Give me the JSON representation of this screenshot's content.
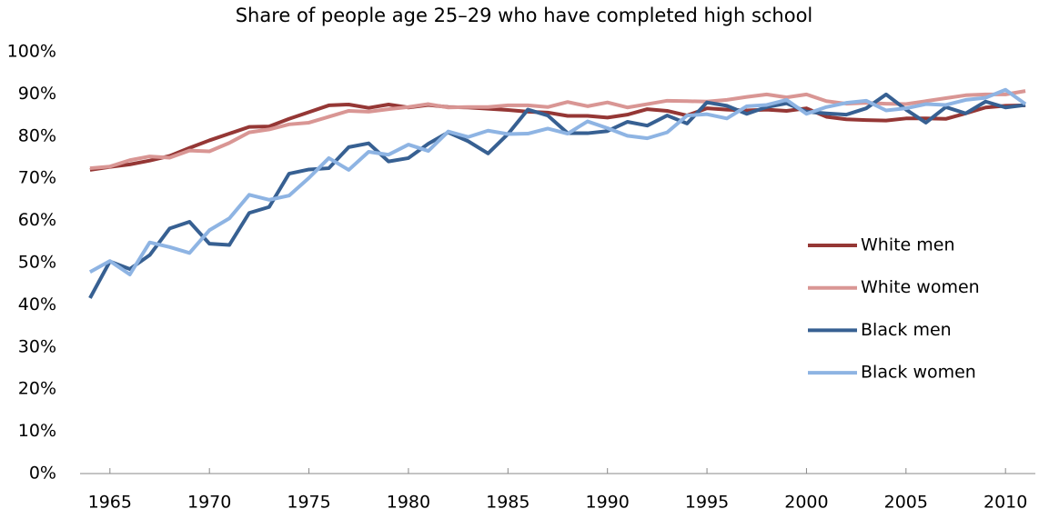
{
  "chart_data": {
    "type": "line",
    "title": "Share of people age 25–29 who have completed high school",
    "x": [
      1964,
      1965,
      1966,
      1967,
      1968,
      1969,
      1970,
      1971,
      1972,
      1973,
      1974,
      1975,
      1976,
      1977,
      1978,
      1979,
      1980,
      1981,
      1982,
      1983,
      1984,
      1985,
      1986,
      1987,
      1988,
      1989,
      1990,
      1991,
      1992,
      1993,
      1994,
      1995,
      1996,
      1997,
      1998,
      1999,
      2000,
      2001,
      2002,
      2003,
      2004,
      2005,
      2006,
      2007,
      2008,
      2009,
      2010,
      2011
    ],
    "series": [
      {
        "name": "White men",
        "color": "#953735",
        "values": [
          72,
          72.7,
          73.3,
          74.2,
          75.3,
          77.2,
          79,
          80.6,
          82.2,
          82.3,
          84.1,
          85.7,
          87.3,
          87.5,
          86.7,
          87.5,
          86.8,
          87.4,
          86.9,
          86.8,
          86.5,
          86.2,
          85.8,
          85.6,
          84.8,
          84.8,
          84.4,
          85.1,
          86.4,
          86,
          84.9,
          86.6,
          86.3,
          86.1,
          86.3,
          86,
          86.6,
          84.6,
          84,
          83.8,
          83.7,
          84.2,
          84.2,
          84.1,
          85.4,
          86.8,
          87.2,
          87.3
        ]
      },
      {
        "name": "White women",
        "color": "#d99694",
        "values": [
          72.4,
          72.8,
          74.3,
          75.2,
          74.9,
          76.6,
          76.4,
          78.4,
          80.9,
          81.6,
          82.8,
          83.2,
          84.6,
          86,
          85.8,
          86.4,
          86.9,
          87.6,
          86.8,
          86.9,
          86.9,
          87.3,
          87.3,
          86.9,
          88.1,
          87.1,
          88,
          86.8,
          87.6,
          88.4,
          88.3,
          88.2,
          88.6,
          89.3,
          89.9,
          89.2,
          89.9,
          88.3,
          87.7,
          87.9,
          87.7,
          87.6,
          88.3,
          89,
          89.7,
          89.9,
          89.9,
          90.7
        ]
      },
      {
        "name": "Black men",
        "color": "#376092",
        "values": [
          41.6,
          50.3,
          48.5,
          51.8,
          58.1,
          59.7,
          54.5,
          54.2,
          61.8,
          63.2,
          71.1,
          72.1,
          72.4,
          77.4,
          78.3,
          74,
          74.8,
          78.2,
          80.9,
          78.8,
          75.9,
          80.5,
          86.3,
          84.9,
          80.7,
          80.7,
          81.2,
          83.4,
          82.5,
          84.9,
          83,
          88,
          87.2,
          85.3,
          86.9,
          87.8,
          85.8,
          85.4,
          85.1,
          86.6,
          89.9,
          86.3,
          83.2,
          86.9,
          85.4,
          88.2,
          86.8,
          87.4
        ]
      },
      {
        "name": "Black women",
        "color": "#8eb4e3",
        "values": [
          47.8,
          50.4,
          47.2,
          54.8,
          53.7,
          52.3,
          57.7,
          60.5,
          66.1,
          64.9,
          65.9,
          70.1,
          74.8,
          72,
          76.3,
          75.6,
          78,
          76.5,
          81.1,
          79.8,
          81.3,
          80.5,
          80.6,
          81.8,
          80.6,
          83.5,
          81.9,
          80.1,
          79.5,
          80.9,
          84.9,
          85.2,
          84.2,
          87.1,
          87.4,
          88.6,
          85.3,
          86.9,
          87.9,
          88.4,
          86.1,
          86.6,
          87.6,
          87.4,
          88.6,
          89.1,
          91,
          87.6
        ]
      }
    ],
    "xlim": [
      1963.5,
      2011.5
    ],
    "xticks": [
      1965,
      1970,
      1975,
      1980,
      1985,
      1990,
      1995,
      2000,
      2005,
      2010
    ],
    "ylim": [
      0,
      100
    ],
    "yticks": [
      {
        "value": 0,
        "label": "0%"
      },
      {
        "value": 10,
        "label": "10%"
      },
      {
        "value": 20,
        "label": "20%"
      },
      {
        "value": 30,
        "label": "30%"
      },
      {
        "value": 40,
        "label": "40%"
      },
      {
        "value": 50,
        "label": "50%"
      },
      {
        "value": 60,
        "label": "60%"
      },
      {
        "value": 70,
        "label": "70%"
      },
      {
        "value": 80,
        "label": "80%"
      },
      {
        "value": 90,
        "label": "90%"
      },
      {
        "value": 100,
        "label": "100%"
      }
    ],
    "grid": false,
    "legend": "right"
  }
}
